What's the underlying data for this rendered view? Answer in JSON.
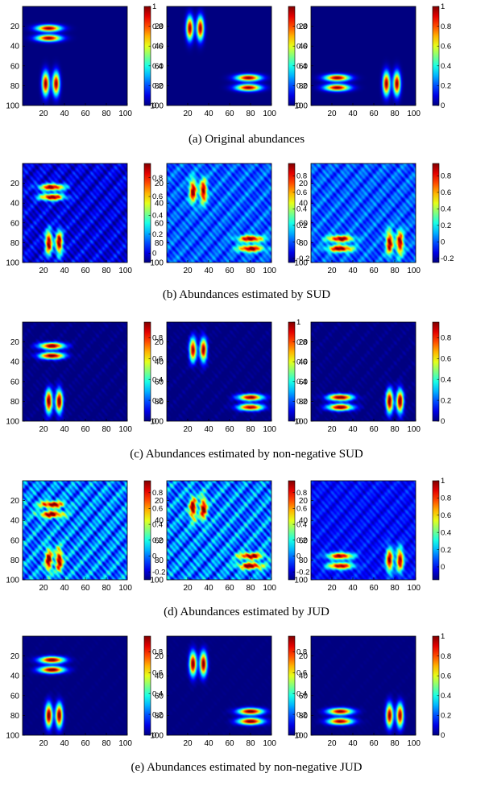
{
  "figure": {
    "rows": [
      {
        "caption": "(a)  Original abundances"
      },
      {
        "caption": "(b)  Abundances estimated by SUD"
      },
      {
        "caption": "(c)  Abundances estimated by non-negative SUD"
      },
      {
        "caption": "(d)  Abundances estimated by JUD"
      },
      {
        "caption": "(e)  Abundances estimated by non-negative JUD"
      }
    ]
  },
  "chart_data": {
    "type": "heatmap",
    "colormap": "jet",
    "x_ticks": [
      20,
      40,
      60,
      80,
      100
    ],
    "y_ticks": [
      20,
      40,
      60,
      80,
      100
    ],
    "xlim": [
      0,
      100
    ],
    "ylim": [
      0,
      100
    ],
    "y_reversed": true,
    "panels": [
      {
        "row": 0,
        "col": 0,
        "range": [
          0,
          1
        ],
        "colorbar_ticks": [
          0,
          0.2,
          0.4,
          0.6,
          0.8,
          1
        ],
        "noise": 0,
        "spots": [
          {
            "x": 25,
            "y": 22,
            "orient": "h"
          },
          {
            "x": 25,
            "y": 32,
            "orient": "h"
          },
          {
            "x": 22,
            "y": 78,
            "orient": "v"
          },
          {
            "x": 32,
            "y": 78,
            "orient": "v"
          }
        ]
      },
      {
        "row": 0,
        "col": 1,
        "range": [
          0,
          1
        ],
        "colorbar_ticks": [
          0,
          0.2,
          0.4,
          0.6,
          0.8
        ],
        "noise": 0,
        "spots": [
          {
            "x": 22,
            "y": 22,
            "orient": "v"
          },
          {
            "x": 32,
            "y": 22,
            "orient": "v"
          },
          {
            "x": 78,
            "y": 72,
            "orient": "h"
          },
          {
            "x": 78,
            "y": 82,
            "orient": "h"
          }
        ]
      },
      {
        "row": 0,
        "col": 2,
        "range": [
          0,
          1
        ],
        "colorbar_ticks": [
          0,
          0.2,
          0.4,
          0.6,
          0.8,
          1
        ],
        "noise": 0,
        "spots": [
          {
            "x": 25,
            "y": 72,
            "orient": "h"
          },
          {
            "x": 25,
            "y": 82,
            "orient": "h"
          },
          {
            "x": 72,
            "y": 78,
            "orient": "v"
          },
          {
            "x": 82,
            "y": 78,
            "orient": "v"
          }
        ]
      },
      {
        "row": 1,
        "col": 0,
        "range": [
          -0.1,
          0.95
        ],
        "colorbar_ticks": [
          0,
          0.2,
          0.4,
          0.6,
          0.8
        ],
        "noise": 0.05,
        "spots": [
          {
            "x": 28,
            "y": 24,
            "orient": "h"
          },
          {
            "x": 28,
            "y": 34,
            "orient": "h"
          },
          {
            "x": 25,
            "y": 80,
            "orient": "v"
          },
          {
            "x": 35,
            "y": 80,
            "orient": "v"
          }
        ]
      },
      {
        "row": 1,
        "col": 1,
        "range": [
          -0.25,
          0.95
        ],
        "colorbar_ticks": [
          -0.2,
          0,
          0.2,
          0.4,
          0.6,
          0.8
        ],
        "noise": 0.06,
        "spots": [
          {
            "x": 25,
            "y": 28,
            "orient": "v"
          },
          {
            "x": 35,
            "y": 28,
            "orient": "v"
          },
          {
            "x": 80,
            "y": 76,
            "orient": "h"
          },
          {
            "x": 80,
            "y": 86,
            "orient": "h"
          }
        ]
      },
      {
        "row": 1,
        "col": 2,
        "range": [
          -0.25,
          0.95
        ],
        "colorbar_ticks": [
          -0.2,
          0,
          0.2,
          0.4,
          0.6,
          0.8
        ],
        "noise": 0.06,
        "spots": [
          {
            "x": 28,
            "y": 76,
            "orient": "h"
          },
          {
            "x": 28,
            "y": 86,
            "orient": "h"
          },
          {
            "x": 75,
            "y": 80,
            "orient": "v"
          },
          {
            "x": 85,
            "y": 80,
            "orient": "v"
          }
        ]
      },
      {
        "row": 2,
        "col": 0,
        "range": [
          0,
          0.95
        ],
        "colorbar_ticks": [
          0,
          0.2,
          0.4,
          0.6,
          0.8
        ],
        "noise": 0.015,
        "spots": [
          {
            "x": 28,
            "y": 24,
            "orient": "h"
          },
          {
            "x": 28,
            "y": 34,
            "orient": "h"
          },
          {
            "x": 25,
            "y": 80,
            "orient": "v"
          },
          {
            "x": 35,
            "y": 80,
            "orient": "v"
          }
        ]
      },
      {
        "row": 2,
        "col": 1,
        "range": [
          0,
          1
        ],
        "colorbar_ticks": [
          0,
          0.2,
          0.4,
          0.6,
          0.8,
          1
        ],
        "noise": 0.015,
        "spots": [
          {
            "x": 25,
            "y": 28,
            "orient": "v"
          },
          {
            "x": 35,
            "y": 28,
            "orient": "v"
          },
          {
            "x": 80,
            "y": 76,
            "orient": "h"
          },
          {
            "x": 80,
            "y": 86,
            "orient": "h"
          }
        ]
      },
      {
        "row": 2,
        "col": 2,
        "range": [
          0,
          0.95
        ],
        "colorbar_ticks": [
          0,
          0.2,
          0.4,
          0.6,
          0.8
        ],
        "noise": 0.015,
        "spots": [
          {
            "x": 28,
            "y": 76,
            "orient": "h"
          },
          {
            "x": 28,
            "y": 86,
            "orient": "h"
          },
          {
            "x": 75,
            "y": 80,
            "orient": "v"
          },
          {
            "x": 85,
            "y": 80,
            "orient": "v"
          }
        ]
      },
      {
        "row": 3,
        "col": 0,
        "range": [
          -0.3,
          0.95
        ],
        "colorbar_ticks": [
          -0.2,
          0,
          0.2,
          0.4,
          0.6,
          0.8
        ],
        "noise": 0.1,
        "spots": [
          {
            "x": 28,
            "y": 24,
            "orient": "h"
          },
          {
            "x": 28,
            "y": 34,
            "orient": "h"
          },
          {
            "x": 25,
            "y": 80,
            "orient": "v"
          },
          {
            "x": 35,
            "y": 80,
            "orient": "v"
          }
        ]
      },
      {
        "row": 3,
        "col": 1,
        "range": [
          -0.3,
          0.95
        ],
        "colorbar_ticks": [
          -0.2,
          0,
          0.2,
          0.4,
          0.6,
          0.8
        ],
        "noise": 0.1,
        "spots": [
          {
            "x": 25,
            "y": 28,
            "orient": "v"
          },
          {
            "x": 35,
            "y": 28,
            "orient": "v"
          },
          {
            "x": 80,
            "y": 76,
            "orient": "h"
          },
          {
            "x": 80,
            "y": 86,
            "orient": "h"
          }
        ]
      },
      {
        "row": 3,
        "col": 2,
        "range": [
          -0.15,
          1
        ],
        "colorbar_ticks": [
          0,
          0.2,
          0.4,
          0.6,
          0.8,
          1
        ],
        "noise": 0.04,
        "spots": [
          {
            "x": 28,
            "y": 76,
            "orient": "h"
          },
          {
            "x": 28,
            "y": 86,
            "orient": "h"
          },
          {
            "x": 75,
            "y": 80,
            "orient": "v"
          },
          {
            "x": 85,
            "y": 80,
            "orient": "v"
          }
        ]
      },
      {
        "row": 4,
        "col": 0,
        "range": [
          0,
          0.95
        ],
        "colorbar_ticks": [
          0,
          0.2,
          0.4,
          0.6,
          0.8
        ],
        "noise": 0.005,
        "spots": [
          {
            "x": 28,
            "y": 24,
            "orient": "h"
          },
          {
            "x": 28,
            "y": 34,
            "orient": "h"
          },
          {
            "x": 25,
            "y": 80,
            "orient": "v"
          },
          {
            "x": 35,
            "y": 80,
            "orient": "v"
          }
        ]
      },
      {
        "row": 4,
        "col": 1,
        "range": [
          0,
          0.95
        ],
        "colorbar_ticks": [
          0,
          0.2,
          0.4,
          0.6,
          0.8
        ],
        "noise": 0.005,
        "spots": [
          {
            "x": 25,
            "y": 28,
            "orient": "v"
          },
          {
            "x": 35,
            "y": 28,
            "orient": "v"
          },
          {
            "x": 80,
            "y": 76,
            "orient": "h"
          },
          {
            "x": 80,
            "y": 86,
            "orient": "h"
          }
        ]
      },
      {
        "row": 4,
        "col": 2,
        "range": [
          0,
          1
        ],
        "colorbar_ticks": [
          0,
          0.2,
          0.4,
          0.6,
          0.8,
          1
        ],
        "noise": 0.005,
        "spots": [
          {
            "x": 28,
            "y": 76,
            "orient": "h"
          },
          {
            "x": 28,
            "y": 86,
            "orient": "h"
          },
          {
            "x": 75,
            "y": 80,
            "orient": "v"
          },
          {
            "x": 85,
            "y": 80,
            "orient": "v"
          }
        ]
      }
    ]
  }
}
